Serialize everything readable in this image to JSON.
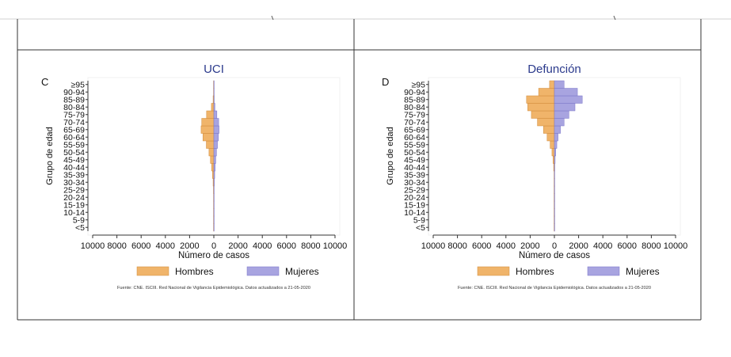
{
  "colors": {
    "men": "#f0b46a",
    "men_stroke": "#d08a3a",
    "women": "#a8a4e0",
    "women_stroke": "#7b76c8",
    "title": "#2b3a8c",
    "frame": "#333333"
  },
  "age_groups": [
    "<5",
    "5-9",
    "10-14",
    "15-19",
    "20-24",
    "25-29",
    "30-34",
    "35-39",
    "40-44",
    "45-49",
    "50-54",
    "55-59",
    "60-64",
    "65-69",
    "70-74",
    "75-79",
    "80-84",
    "85-89",
    "90-94",
    "≥95"
  ],
  "x_ticks": [
    "10000",
    "8000",
    "6000",
    "4000",
    "2000",
    "0",
    "2000",
    "4000",
    "6000",
    "8000",
    "10000"
  ],
  "legend": {
    "men": "Hombres",
    "women": "Mujeres"
  },
  "source": "Fuente: CNE. ISCIII. Red Nacional de Vigilancia Epidemiológica. Datos actualizados a 21-05-2020",
  "chart_data": [
    {
      "type": "bar",
      "orientation": "horizontal-pyramid",
      "panel": "C",
      "title": "UCI",
      "xlabel": "Número de casos",
      "ylabel": "Grupo de edad",
      "xlim": [
        -10000,
        10000
      ],
      "categories": [
        "<5",
        "5-9",
        "10-14",
        "15-19",
        "20-24",
        "25-29",
        "30-34",
        "35-39",
        "40-44",
        "45-49",
        "50-54",
        "55-59",
        "60-64",
        "65-69",
        "70-74",
        "75-79",
        "80-84",
        "85-89",
        "90-94",
        "≥95"
      ],
      "series": [
        {
          "name": "Hombres",
          "values": [
            15,
            8,
            8,
            15,
            20,
            35,
            60,
            110,
            180,
            280,
            400,
            620,
            900,
            1050,
            1000,
            600,
            200,
            60,
            15,
            5
          ]
        },
        {
          "name": "Mujeres",
          "values": [
            12,
            6,
            6,
            10,
            15,
            25,
            40,
            70,
            110,
            160,
            220,
            300,
            380,
            430,
            400,
            250,
            90,
            30,
            8,
            3
          ]
        }
      ]
    },
    {
      "type": "bar",
      "orientation": "horizontal-pyramid",
      "panel": "D",
      "title": "Defunción",
      "xlabel": "Número de casos",
      "ylabel": "Grupo de edad",
      "xlim": [
        -10000,
        10000
      ],
      "categories": [
        "<5",
        "5-9",
        "10-14",
        "15-19",
        "20-24",
        "25-29",
        "30-34",
        "35-39",
        "40-44",
        "45-49",
        "50-54",
        "55-59",
        "60-64",
        "65-69",
        "70-74",
        "75-79",
        "80-84",
        "85-89",
        "90-94",
        "≥95"
      ],
      "series": [
        {
          "name": "Hombres",
          "values": [
            2,
            1,
            1,
            2,
            5,
            8,
            15,
            25,
            60,
            110,
            200,
            350,
            600,
            900,
            1400,
            1900,
            2200,
            2300,
            1300,
            400
          ]
        },
        {
          "name": "Mujeres",
          "values": [
            2,
            1,
            1,
            1,
            3,
            5,
            10,
            15,
            30,
            60,
            110,
            200,
            300,
            500,
            800,
            1200,
            1700,
            2300,
            1900,
            800
          ]
        }
      ]
    }
  ]
}
